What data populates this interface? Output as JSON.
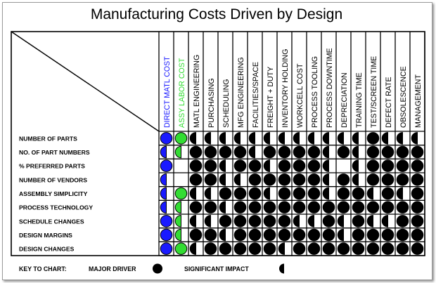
{
  "title": "Manufacturing Costs Driven by Design",
  "columns": [
    {
      "label": "DIRECT MATL COST",
      "color": "#1a1aff"
    },
    {
      "label": "ASSY LABOR COST",
      "color": "#33dd33"
    },
    {
      "label": "MATL ENGINEERING",
      "color": "#000000"
    },
    {
      "label": "PURCHASING",
      "color": "#000000"
    },
    {
      "label": "SCHEDULING",
      "color": "#000000"
    },
    {
      "label": "MFG ENGINEERING",
      "color": "#000000"
    },
    {
      "label": "FACILITIES/SPACE",
      "color": "#000000"
    },
    {
      "label": "FREIGHT + DUTY",
      "color": "#000000"
    },
    {
      "label": "INVENTORY HOLDING",
      "color": "#000000"
    },
    {
      "label": "WORKCELL COST",
      "color": "#000000"
    },
    {
      "label": "PROCESS TOOLING",
      "color": "#000000"
    },
    {
      "label": "PROCESS DOWNTIME",
      "color": "#000000"
    },
    {
      "label": "DEPRECIATION",
      "color": "#000000"
    },
    {
      "label": "TRAINING TIME",
      "color": "#000000"
    },
    {
      "label": "TEST/SCREEN TIME",
      "color": "#000000"
    },
    {
      "label": "DEFECT RATE",
      "color": "#000000"
    },
    {
      "label": "OBSOLESCENCE",
      "color": "#000000"
    },
    {
      "label": "MANAGEMENT",
      "color": "#000000"
    }
  ],
  "rows": [
    {
      "label": "NUMBER OF PARTS",
      "cells": "FFHHHHHHHHHHHHFHHH"
    },
    {
      "label": "NO. OF PART NUMBERS",
      "cells": "HHFFFFHFFFFHFHFFFF"
    },
    {
      "label": "% PREFERRED PARTS",
      "cells": "F.FFHFFHFFFH.HFFFF"
    },
    {
      "label": "NUMBER OF VENDORS",
      "cells": "H.FFHHFFFFFHFHFFFF"
    },
    {
      "label": "ASSEMBLY SIMPLICITY",
      "cells": "HFHHFFFHFFFHFFHFHF"
    },
    {
      "label": "PROCESS TECHNOLOGY",
      "cells": "HHFFHFFFFFFFFFFFFF"
    },
    {
      "label": "SCHEDULE CHANGES",
      "cells": "FHHHFFFFFHHFHFHHFF"
    },
    {
      "label": "DESIGN MARGINS",
      "cells": "FHFFHFFFFFFFHFFFFF"
    },
    {
      "label": "DESIGN CHANGES",
      "cells": "FFHFFFFFHFFFFFFFFF"
    }
  ],
  "key": {
    "lead": "KEY TO CHART:",
    "major_label": "MAJOR DRIVER",
    "significant_label": "SIGNIFICANT IMPACT"
  },
  "colors": {
    "blue_fill": "#1a1aff",
    "green_fill": "#33dd33",
    "black_fill": "#000000"
  },
  "icons": {
    "major": "full-circle",
    "significant": "half-circle"
  }
}
